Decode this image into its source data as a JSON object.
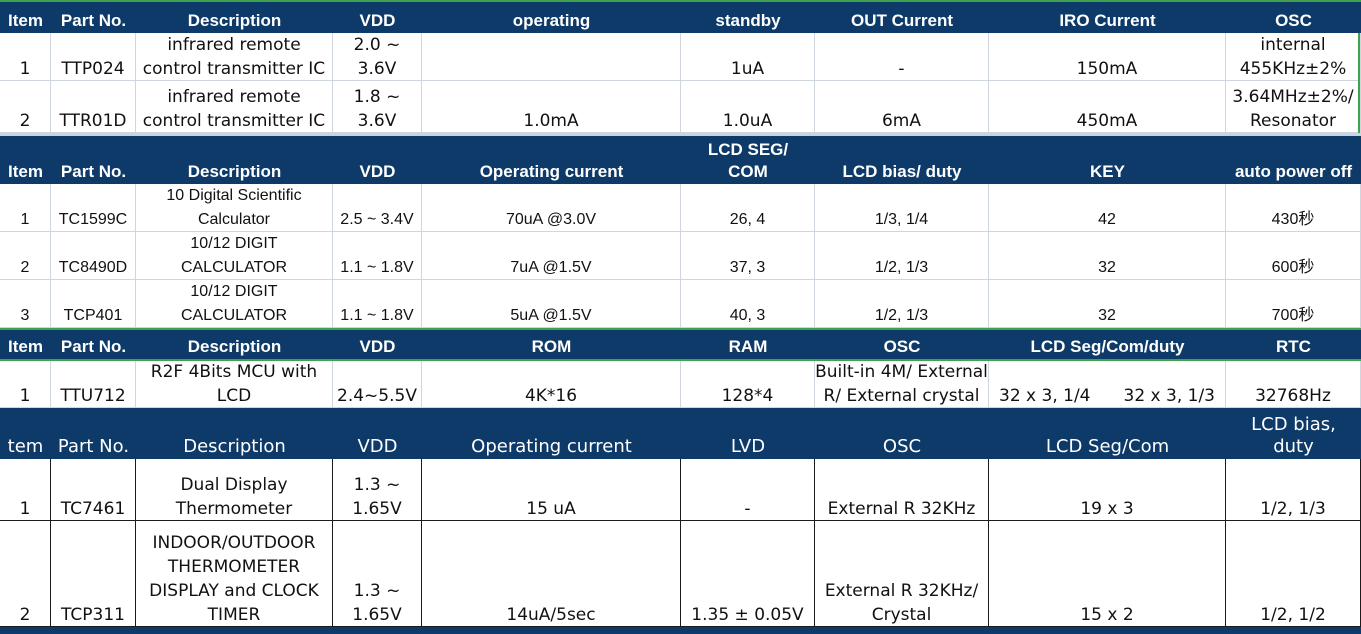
{
  "tables": [
    {
      "id": "ir",
      "header": [
        "Item",
        "Part No.",
        "Description",
        "VDD",
        "operating",
        "standby",
        "OUT Current",
        "IRO Current",
        "OSC"
      ],
      "rows": [
        [
          "1",
          "TTP024",
          "infrared remote\ncontrol transmitter IC",
          "2.0 ~ 3.6V",
          "",
          "1uA",
          "-",
          "150mA",
          "internal\n455KHz±2%"
        ],
        [
          "2",
          "TTR01D",
          "infrared remote\ncontrol transmitter IC",
          "1.8 ~ 3.6V",
          "1.0mA",
          "1.0uA",
          "6mA",
          "450mA",
          "3.64MHz±2%/\nResonator"
        ]
      ]
    },
    {
      "id": "calculator",
      "header": [
        "Item",
        "Part No.",
        "Description",
        "VDD",
        "Operating current",
        "LCD      SEG/\nCOM",
        "LCD  bias/ duty",
        "KEY",
        "auto power off"
      ],
      "rows": [
        [
          "1",
          "TC1599C",
          "10 Digital Scientific\nCalculator",
          "2.5 ~ 3.4V",
          "70uA @3.0V",
          "26,  4",
          "1/3, 1/4",
          "42",
          "430秒"
        ],
        [
          "2",
          "TC8490D",
          "10/12 DIGIT\nCALCULATOR",
          "1.1 ~ 1.8V",
          "7uA @1.5V",
          "37, 3",
          "1/2, 1/3",
          "32",
          "600秒"
        ],
        [
          "3",
          "TCP401",
          "10/12 DIGIT\nCALCULATOR",
          "1.1 ~ 1.8V",
          "5uA @1.5V",
          "40, 3",
          "1/2, 1/3",
          "32",
          "700秒"
        ]
      ]
    },
    {
      "id": "mcu",
      "header": [
        "Item",
        "Part No.",
        "Description",
        "VDD",
        "ROM",
        "RAM",
        "OSC",
        "LCD Seg/Com/duty",
        "RTC"
      ],
      "rows": [
        [
          "1",
          "TTU712",
          "R2F 4Bits MCU with\nLCD",
          "2.4~5.5V",
          "4K*16",
          "128*4",
          "Built-in 4M/ External\nR/ External crystal",
          [
            "32 x 3, 1/4",
            "32 x 3, 1/3"
          ],
          "32768Hz"
        ]
      ]
    },
    {
      "id": "thermometer",
      "header": [
        "tem",
        "Part No.",
        "Description",
        "VDD",
        "Operating current",
        "LVD",
        "OSC",
        "LCD Seg/Com",
        "LCD  bias,\nduty"
      ],
      "rows": [
        [
          "1",
          "TC7461",
          "Dual Display\nThermometer",
          "1.3 ~\n1.65V",
          "15 uA",
          "-",
          "External R 32KHz",
          "19 x 3",
          "1/2, 1/3"
        ],
        [
          "2",
          "TCP311",
          "INDOOR/OUTDOOR\nTHERMOMETER\nDISPLAY and CLOCK\nTIMER",
          "1.3 ~\n1.65V",
          "14uA/5sec",
          "1.35 ± 0.05V",
          "External R 32KHz/\nCrystal",
          "15 x 2",
          "1/2, 1/2"
        ]
      ]
    }
  ],
  "colors": {
    "header_fill": "#0d3a68",
    "header_text": "#ffffff",
    "cell_text": "#111111",
    "accent_border": "#3fa34d"
  }
}
